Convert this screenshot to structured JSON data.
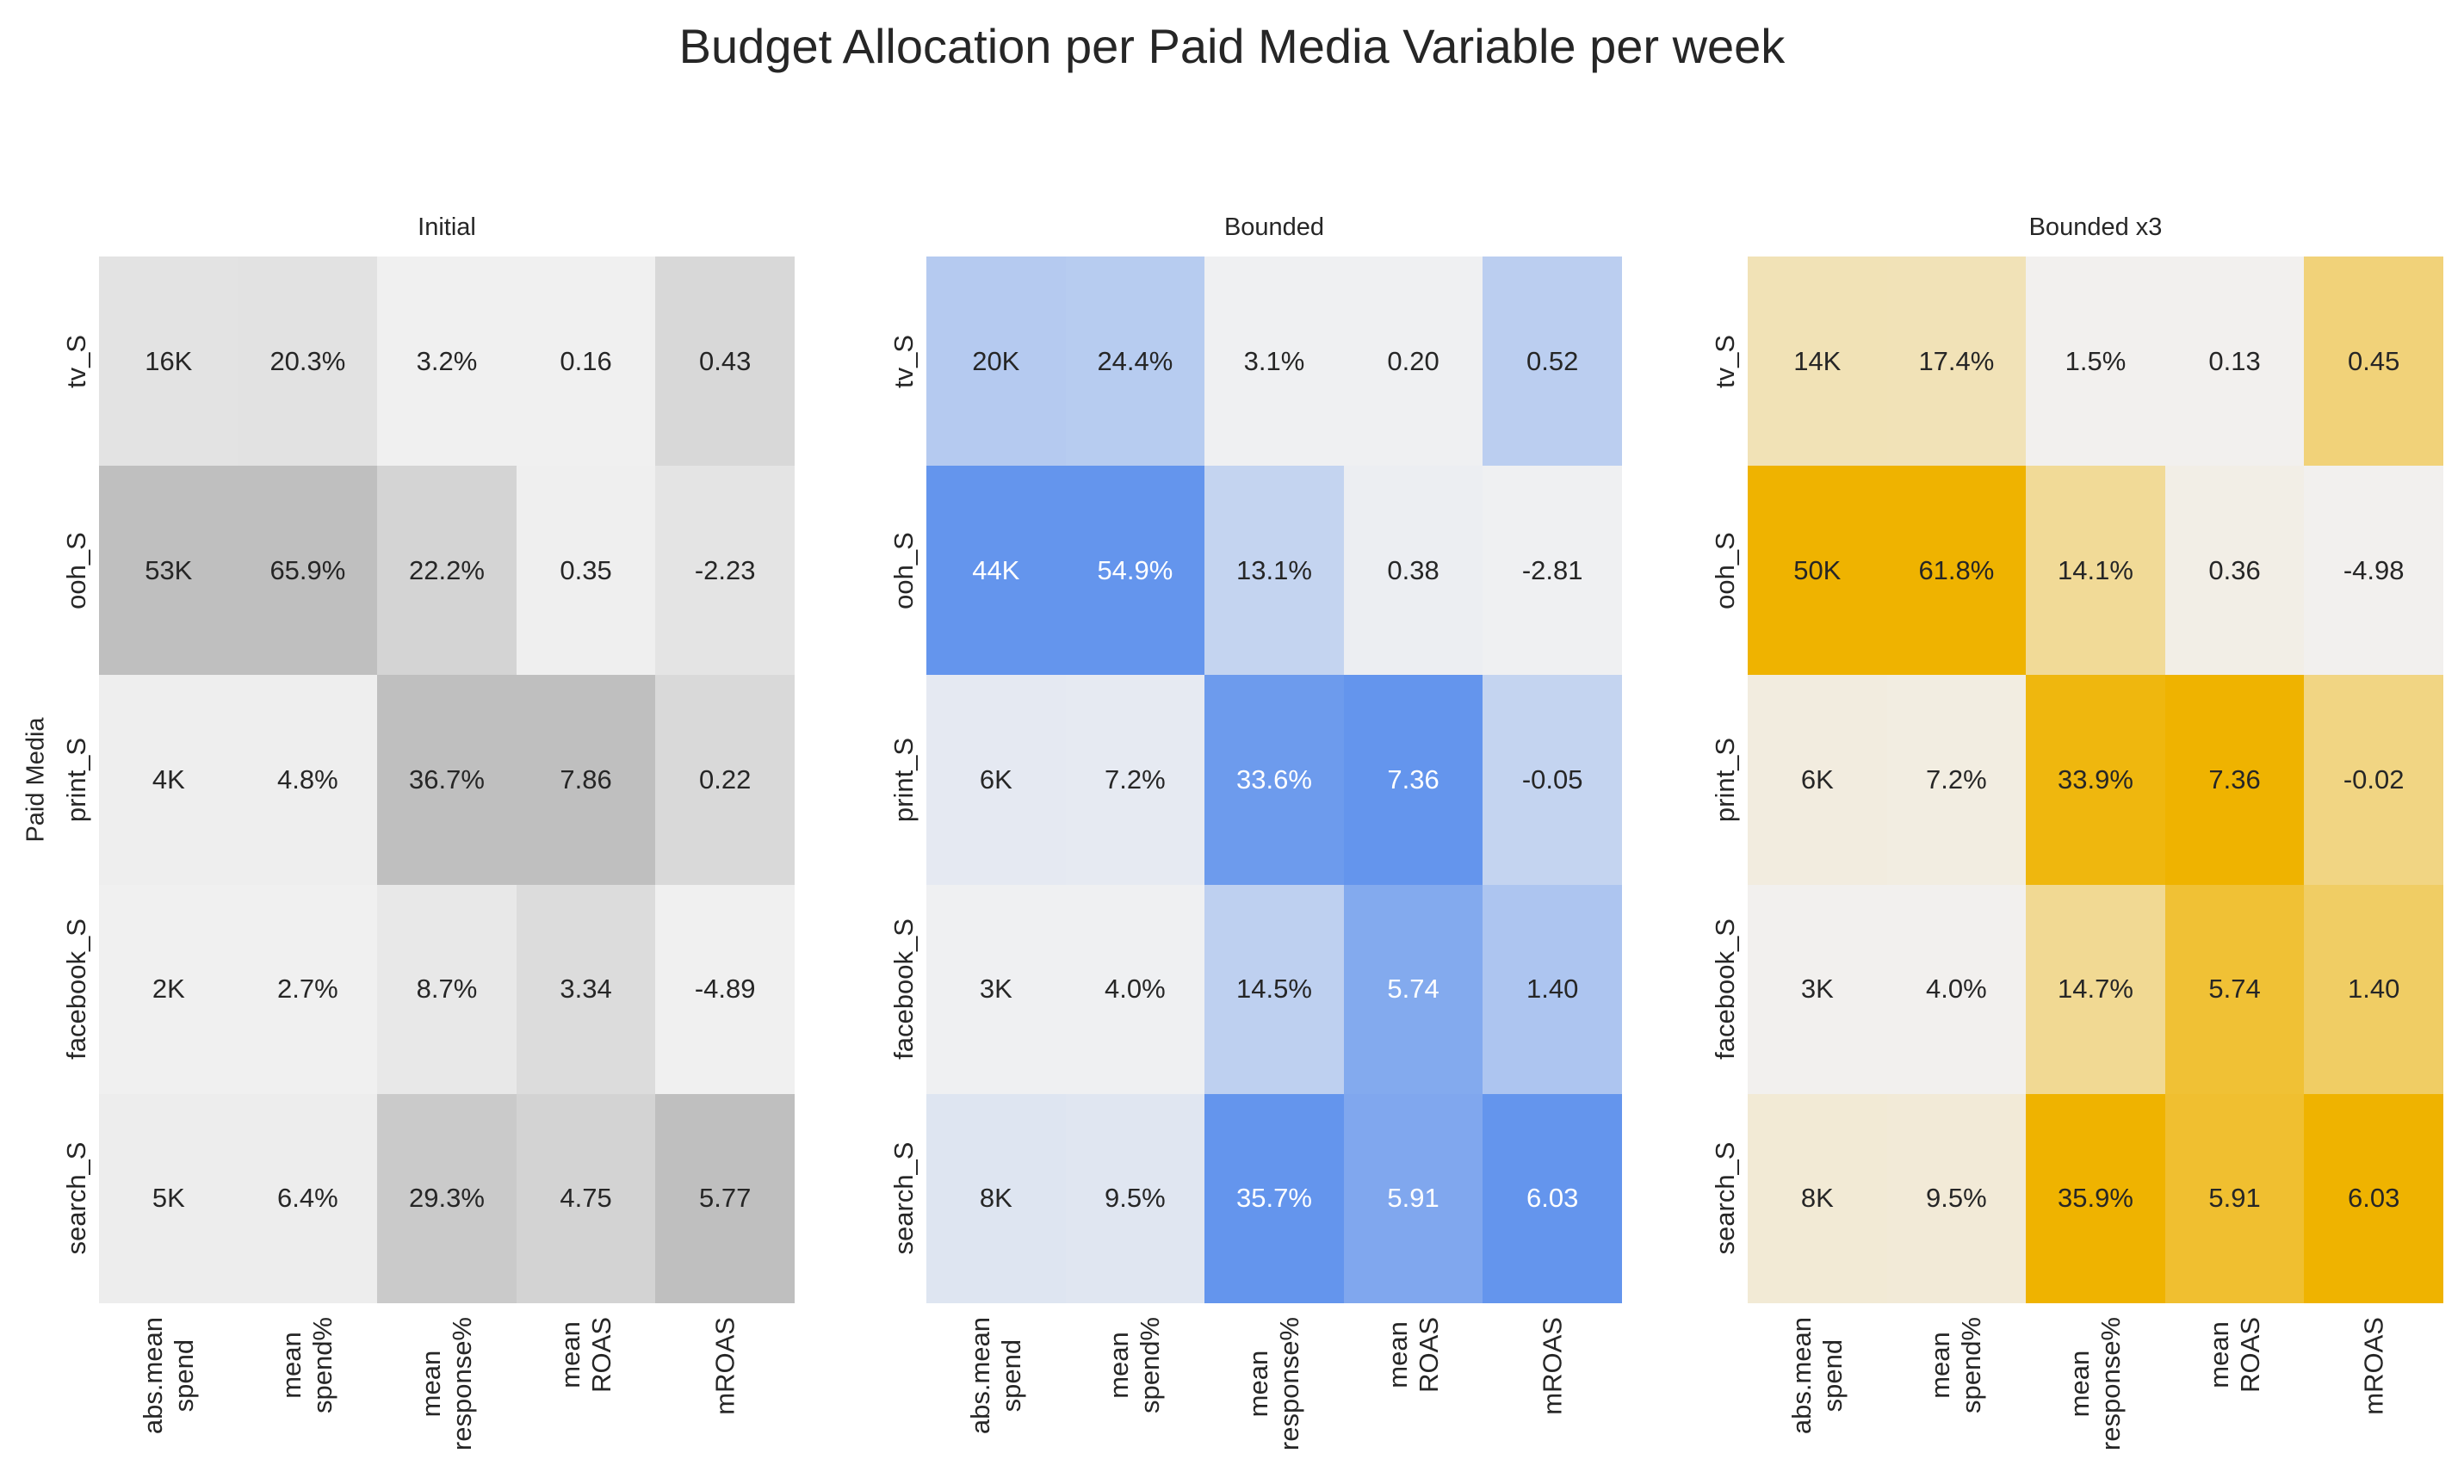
{
  "title": "Budget Allocation per Paid Media Variable per week",
  "ylabel": "Paid Media",
  "chart_data": [
    {
      "type": "heatmap",
      "title": "Initial",
      "rows": [
        "tv_S",
        "ooh_S",
        "print_S",
        "facebook_S",
        "search_S"
      ],
      "columns": [
        "abs.mean\nspend",
        "mean\nspend%",
        "mean\nresponse%",
        "mean\nROAS",
        "mROAS"
      ],
      "cells": [
        [
          "16K",
          "20.3%",
          "3.2%",
          "0.16",
          "0.43"
        ],
        [
          "53K",
          "65.9%",
          "22.2%",
          "0.35",
          "-2.23"
        ],
        [
          "4K",
          "4.8%",
          "36.7%",
          "7.86",
          "0.22"
        ],
        [
          "2K",
          "2.7%",
          "8.7%",
          "3.34",
          "-4.89"
        ],
        [
          "5K",
          "6.4%",
          "29.3%",
          "4.75",
          "5.77"
        ]
      ],
      "colormap": {
        "low": "#f0f0f0",
        "high": "#bfbfbf"
      }
    },
    {
      "type": "heatmap",
      "title": "Bounded",
      "rows": [
        "tv_S",
        "ooh_S",
        "print_S",
        "facebook_S",
        "search_S"
      ],
      "columns": [
        "abs.mean\nspend",
        "mean\nspend%",
        "mean\nresponse%",
        "mean\nROAS",
        "mROAS"
      ],
      "cells": [
        [
          "20K",
          "24.4%",
          "3.1%",
          "0.20",
          "0.52"
        ],
        [
          "44K",
          "54.9%",
          "13.1%",
          "0.38",
          "-2.81"
        ],
        [
          "6K",
          "7.2%",
          "33.6%",
          "7.36",
          "-0.05"
        ],
        [
          "3K",
          "4.0%",
          "14.5%",
          "5.74",
          "1.40"
        ],
        [
          "8K",
          "9.5%",
          "35.7%",
          "5.91",
          "6.03"
        ]
      ],
      "colormap": {
        "low": "#eff0f2",
        "high": "#6495ed"
      }
    },
    {
      "type": "heatmap",
      "title": "Bounded x3",
      "rows": [
        "tv_S",
        "ooh_S",
        "print_S",
        "facebook_S",
        "search_S"
      ],
      "columns": [
        "abs.mean\nspend",
        "mean\nspend%",
        "mean\nresponse%",
        "mean\nROAS",
        "mROAS"
      ],
      "cells": [
        [
          "14K",
          "17.4%",
          "1.5%",
          "0.13",
          "0.45"
        ],
        [
          "50K",
          "61.8%",
          "14.1%",
          "0.36",
          "-4.98"
        ],
        [
          "6K",
          "7.2%",
          "33.9%",
          "7.36",
          "-0.02"
        ],
        [
          "3K",
          "4.0%",
          "14.7%",
          "5.74",
          "1.40"
        ],
        [
          "8K",
          "9.5%",
          "35.9%",
          "5.91",
          "6.03"
        ]
      ],
      "colormap": {
        "low": "#f2f0ee",
        "high": "#efb300"
      }
    }
  ]
}
